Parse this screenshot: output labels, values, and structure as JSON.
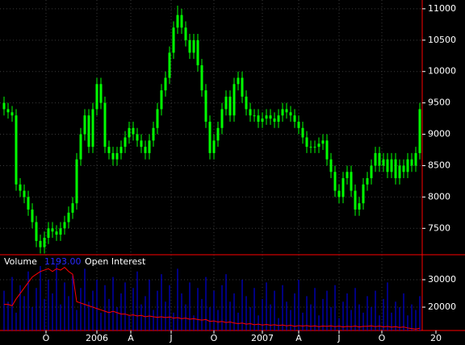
{
  "chart_data": {
    "type": "candlestick",
    "ohlc": [
      [
        9500,
        9600,
        9300,
        9400
      ],
      [
        9400,
        9500,
        9250,
        9350
      ],
      [
        9350,
        9450,
        9200,
        9300
      ],
      [
        9300,
        9400,
        8100,
        8200
      ],
      [
        8200,
        8300,
        8000,
        8100
      ],
      [
        8100,
        8200,
        7900,
        8000
      ],
      [
        8000,
        8100,
        7700,
        7800
      ],
      [
        7800,
        7900,
        7500,
        7600
      ],
      [
        7600,
        7700,
        7200,
        7300
      ],
      [
        7300,
        7400,
        7100,
        7200
      ],
      [
        7200,
        7450,
        7100,
        7350
      ],
      [
        7350,
        7600,
        7250,
        7500
      ],
      [
        7500,
        7600,
        7350,
        7450
      ],
      [
        7450,
        7550,
        7300,
        7400
      ],
      [
        7400,
        7600,
        7300,
        7500
      ],
      [
        7500,
        7700,
        7400,
        7600
      ],
      [
        7600,
        7850,
        7500,
        7750
      ],
      [
        7750,
        8000,
        7650,
        7900
      ],
      [
        7900,
        8700,
        7800,
        8600
      ],
      [
        8600,
        9100,
        8500,
        9000
      ],
      [
        9000,
        9400,
        8900,
        9300
      ],
      [
        9300,
        9400,
        8700,
        8800
      ],
      [
        8800,
        9500,
        8700,
        9400
      ],
      [
        9400,
        9900,
        9300,
        9800
      ],
      [
        9800,
        9900,
        9400,
        9500
      ],
      [
        9500,
        9600,
        8700,
        8800
      ],
      [
        8800,
        8900,
        8600,
        8700
      ],
      [
        8700,
        8800,
        8500,
        8600
      ],
      [
        8600,
        8800,
        8500,
        8700
      ],
      [
        8700,
        8900,
        8600,
        8800
      ],
      [
        8800,
        9050,
        8700,
        8950
      ],
      [
        8950,
        9200,
        8850,
        9100
      ],
      [
        9100,
        9200,
        8900,
        9000
      ],
      [
        9000,
        9100,
        8800,
        8900
      ],
      [
        8900,
        9000,
        8700,
        8800
      ],
      [
        8800,
        8900,
        8600,
        8700
      ],
      [
        8700,
        9000,
        8600,
        8900
      ],
      [
        8900,
        9200,
        8800,
        9100
      ],
      [
        9100,
        9500,
        9000,
        9400
      ],
      [
        9400,
        9800,
        9300,
        9700
      ],
      [
        9700,
        10000,
        9600,
        9900
      ],
      [
        9900,
        10400,
        9800,
        10300
      ],
      [
        10300,
        10800,
        10200,
        10700
      ],
      [
        10700,
        11050,
        10600,
        10900
      ],
      [
        10900,
        11000,
        10600,
        10700
      ],
      [
        10700,
        10800,
        10400,
        10500
      ],
      [
        10500,
        10600,
        10200,
        10300
      ],
      [
        10300,
        10600,
        10200,
        10500
      ],
      [
        10500,
        10600,
        10000,
        10100
      ],
      [
        10100,
        10200,
        9600,
        9700
      ],
      [
        9700,
        9800,
        9100,
        9200
      ],
      [
        9200,
        9300,
        8600,
        8700
      ],
      [
        8700,
        9000,
        8600,
        8900
      ],
      [
        8900,
        9200,
        8800,
        9100
      ],
      [
        9100,
        9500,
        9000,
        9400
      ],
      [
        9400,
        9700,
        9300,
        9600
      ],
      [
        9600,
        9700,
        9200,
        9300
      ],
      [
        9300,
        9900,
        9200,
        9800
      ],
      [
        9800,
        10000,
        9700,
        9900
      ],
      [
        9900,
        10000,
        9500,
        9600
      ],
      [
        9600,
        9700,
        9300,
        9400
      ],
      [
        9400,
        9500,
        9200,
        9300
      ],
      [
        9300,
        9400,
        9200,
        9300
      ],
      [
        9300,
        9400,
        9100,
        9200
      ],
      [
        9200,
        9350,
        9100,
        9250
      ],
      [
        9250,
        9400,
        9150,
        9300
      ],
      [
        9300,
        9400,
        9150,
        9250
      ],
      [
        9250,
        9350,
        9100,
        9200
      ],
      [
        9200,
        9400,
        9100,
        9300
      ],
      [
        9300,
        9500,
        9200,
        9400
      ],
      [
        9400,
        9500,
        9250,
        9350
      ],
      [
        9350,
        9450,
        9200,
        9300
      ],
      [
        9300,
        9400,
        9100,
        9200
      ],
      [
        9200,
        9300,
        9000,
        9100
      ],
      [
        9100,
        9200,
        8850,
        8950
      ],
      [
        8950,
        9050,
        8700,
        8800
      ],
      [
        8800,
        8900,
        8700,
        8800
      ],
      [
        8800,
        8900,
        8700,
        8800
      ],
      [
        8800,
        8950,
        8700,
        8850
      ],
      [
        8850,
        9000,
        8750,
        8900
      ],
      [
        8900,
        9000,
        8500,
        8600
      ],
      [
        8600,
        8700,
        8300,
        8400
      ],
      [
        8400,
        8500,
        8000,
        8100
      ],
      [
        8100,
        8200,
        7900,
        8000
      ],
      [
        8000,
        8400,
        7900,
        8300
      ],
      [
        8300,
        8500,
        8200,
        8400
      ],
      [
        8400,
        8500,
        8000,
        8100
      ],
      [
        8100,
        8200,
        7700,
        7800
      ],
      [
        7800,
        8000,
        7700,
        7900
      ],
      [
        7900,
        8300,
        7800,
        8200
      ],
      [
        8200,
        8400,
        8100,
        8300
      ],
      [
        8300,
        8600,
        8200,
        8500
      ],
      [
        8500,
        8800,
        8400,
        8700
      ],
      [
        8700,
        8800,
        8400,
        8500
      ],
      [
        8500,
        8700,
        8400,
        8600
      ],
      [
        8600,
        8700,
        8300,
        8400
      ],
      [
        8400,
        8700,
        8300,
        8600
      ],
      [
        8600,
        8700,
        8200,
        8300
      ],
      [
        8300,
        8600,
        8200,
        8500
      ],
      [
        8500,
        8600,
        8300,
        8400
      ],
      [
        8400,
        8700,
        8300,
        8600
      ],
      [
        8600,
        8700,
        8400,
        8500
      ],
      [
        8500,
        8800,
        8400,
        8700
      ],
      [
        8700,
        9500,
        8600,
        9400
      ]
    ],
    "color": "#00ff00",
    "xlim": [
      -1,
      103.6
    ],
    "xticks": [
      {
        "value": 10.4,
        "label": "O"
      },
      {
        "value": 23,
        "label": "2006"
      },
      {
        "value": 31.4,
        "label": "A"
      },
      {
        "value": 41.4,
        "label": "J"
      },
      {
        "value": 52,
        "label": "O"
      },
      {
        "value": 64,
        "label": "2007"
      },
      {
        "value": 73,
        "label": "A"
      },
      {
        "value": 83,
        "label": "J"
      },
      {
        "value": 93.6,
        "label": "O"
      },
      {
        "value": 107,
        "label": "20"
      }
    ],
    "ylim": [
      7080,
      11140
    ],
    "yticks": [
      7500,
      8000,
      8500,
      9000,
      9500,
      10000,
      10500,
      11000
    ],
    "grid": true,
    "lower_panel": {
      "legend": [
        "Volume",
        "1193.00",
        "Open Interest"
      ],
      "ylim": [
        11500,
        39100
      ],
      "yticks": [
        20000,
        30000
      ],
      "series": [
        {
          "name": "Volume",
          "type": "bar",
          "color": "#0000ff",
          "values": [
            26000,
            22000,
            31000,
            18000,
            28000,
            24000,
            33000,
            20000,
            27000,
            35000,
            23000,
            30000,
            25000,
            36000,
            21000,
            29000,
            24000,
            32000,
            19000,
            27000,
            34000,
            22000,
            26000,
            30000,
            18000,
            28000,
            23000,
            31000,
            20000,
            25000,
            29000,
            17000,
            27000,
            33000,
            21000,
            24000,
            30000,
            19000,
            26000,
            32000,
            22000,
            28000,
            18000,
            34000,
            25000,
            21000,
            29000,
            17000,
            27000,
            23000,
            31000,
            20000,
            26000,
            19000,
            28000,
            32000,
            22000,
            25000,
            18000,
            30000,
            24000,
            20000,
            27000,
            17000,
            23000,
            29000,
            21000,
            26000,
            16000,
            28000,
            22000,
            19000,
            25000,
            30000,
            18000,
            24000,
            21000,
            27000,
            17000,
            23000,
            26000,
            20000,
            28000,
            16000,
            22000,
            25000,
            19000,
            27000,
            21000,
            18000,
            24000,
            20000,
            26000,
            17000,
            23000,
            29000,
            18000,
            22000,
            20000,
            25000,
            17000,
            21000,
            19000,
            24000
          ]
        },
        {
          "name": "Open Interest",
          "type": "line",
          "color": "#ff0000",
          "values": [
            21000,
            21000,
            20500,
            23000,
            25000,
            27000,
            29000,
            31000,
            32000,
            33000,
            33500,
            34000,
            33000,
            34000,
            33500,
            34500,
            33000,
            32000,
            22000,
            21500,
            21000,
            20500,
            20000,
            19500,
            19000,
            18500,
            18000,
            18500,
            18000,
            17500,
            17500,
            17000,
            17200,
            16800,
            17000,
            16500,
            16800,
            16500,
            16300,
            16500,
            16200,
            16400,
            16000,
            16200,
            15800,
            16000,
            15600,
            15800,
            15500,
            15300,
            15500,
            14800,
            15000,
            14600,
            14800,
            14400,
            14600,
            14200,
            14000,
            14200,
            13800,
            14000,
            13600,
            13800,
            13500,
            13700,
            13400,
            13600,
            13300,
            13500,
            13200,
            13400,
            13000,
            13300,
            13100,
            13300,
            13000,
            13200,
            12900,
            13100,
            13000,
            13200,
            12900,
            13100,
            12800,
            13000,
            12900,
            13100,
            12800,
            13000,
            13000,
            13200,
            12900,
            13100,
            12800,
            13000,
            12700,
            12900,
            12600,
            12800,
            12400,
            12200,
            12000,
            12300
          ]
        }
      ]
    }
  }
}
